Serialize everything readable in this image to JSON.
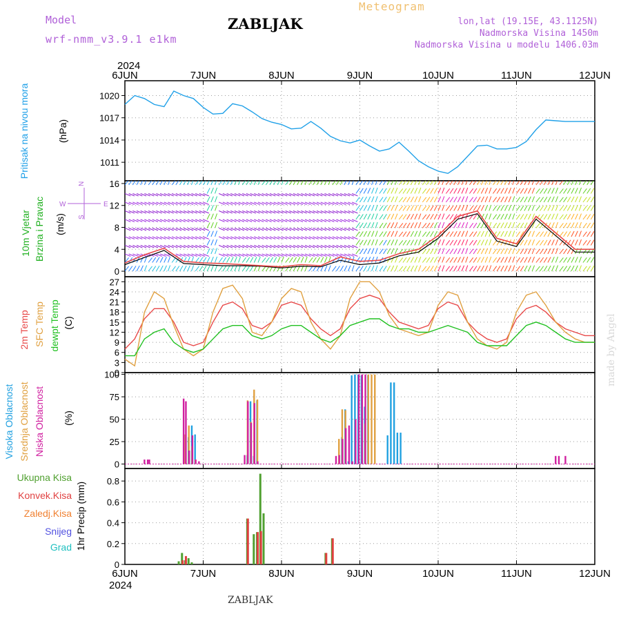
{
  "header": {
    "model_label": "Model",
    "model_name": "wrf-nmm_v3.9.1 e1km",
    "title": "ZABLJAK",
    "meteogram_label": "Meteogram",
    "lonlat": "lon,lat (19.15E, 43.1125N)",
    "altitude": "Nadmorska Visina 1450m",
    "model_altitude": "Nadmorska Visina u modelu 1406.03m"
  },
  "footer": {
    "station": "ZABLJAK",
    "credit": "made by Angel"
  },
  "colors": {
    "pressure": "#1fa0e8",
    "wind_label": "#20b020",
    "temp2m": "#e84848",
    "sfc": "#e0a040",
    "dewpt": "#20c020",
    "high_cloud": "#20a0e0",
    "mid_cloud": "#e0a040",
    "low_cloud": "#d020a0",
    "accent": "#b060d8",
    "total_precip": "#50a030",
    "conv_precip": "#e04040",
    "frozen": "#f08030",
    "snow": "#5050e0",
    "hail": "#20c0c0"
  },
  "chart_data": [
    {
      "type": "line",
      "id": "pressure",
      "ylabel_title": "Pritisak na nivou mora",
      "ylabel_unit": "(hPa)",
      "ylim": [
        1008.5,
        1022
      ],
      "yticks": [
        "1020",
        "1017",
        "1014",
        "1011"
      ],
      "ytick_values": [
        1020,
        1017,
        1014,
        1011
      ],
      "year": "2024",
      "xticks": [
        "6JUN",
        "7JUN",
        "8JUN",
        "9JUN",
        "10JUN",
        "11JUN",
        "12JUN"
      ],
      "xlim_hours": [
        0,
        144
      ],
      "grid": true,
      "series": [
        {
          "color_key": "pressure",
          "x": [
            0,
            3,
            6,
            9,
            12,
            15,
            18,
            21,
            24,
            27,
            30,
            33,
            36,
            39,
            42,
            45,
            48,
            51,
            54,
            57,
            60,
            63,
            66,
            69,
            72,
            75,
            78,
            81,
            84,
            87,
            90,
            93,
            96,
            99,
            102,
            105,
            108,
            111,
            114,
            117,
            120,
            123,
            126,
            129,
            132,
            135,
            138,
            141,
            144
          ],
          "y": [
            1018.8,
            1020.0,
            1019.6,
            1018.8,
            1018.5,
            1020.6,
            1020.0,
            1019.6,
            1018.4,
            1017.5,
            1017.6,
            1018.9,
            1018.6,
            1017.8,
            1016.9,
            1016.4,
            1016.1,
            1015.5,
            1015.6,
            1016.5,
            1015.6,
            1014.5,
            1013.9,
            1013.6,
            1014.0,
            1013.2,
            1012.5,
            1012.8,
            1013.7,
            1012.5,
            1011.2,
            1010.4,
            1009.8,
            1009.5,
            1010.4,
            1011.8,
            1013.2,
            1013.3,
            1012.8,
            1012.8,
            1013.0,
            1013.8,
            1015.4,
            1016.7,
            1016.6,
            1016.5,
            1016.5,
            1016.5,
            1016.5
          ]
        }
      ]
    },
    {
      "type": "line",
      "id": "wind",
      "ylabel_title": "10m Vjetar",
      "ylabel_title2": "Brzina i Pravac",
      "ylabel_unit": "(m/s)",
      "compass": {
        "n": "N",
        "s": "S",
        "w": "W",
        "e": "E"
      },
      "ylim": [
        -1,
        16.5
      ],
      "yticks": [
        "16",
        "12",
        "8",
        "4",
        "0"
      ],
      "ytick_values": [
        16,
        12,
        8,
        4,
        0
      ],
      "series": [
        {
          "name": "speed",
          "color": "#000000",
          "x": [
            0,
            6,
            12,
            18,
            24,
            30,
            36,
            42,
            48,
            54,
            60,
            66,
            72,
            78,
            84,
            90,
            96,
            102,
            108,
            114,
            120,
            126,
            132,
            138,
            144
          ],
          "y": [
            1.2,
            2.5,
            3.8,
            1.4,
            1.2,
            1.0,
            1.0,
            0.9,
            0.6,
            0.9,
            0.8,
            2.0,
            1.2,
            1.5,
            2.8,
            3.5,
            6.0,
            9.5,
            10.5,
            5.5,
            4.5,
            9.5,
            6.5,
            3.5,
            3.5
          ]
        },
        {
          "name": "gust",
          "color": "#e84848",
          "x": [
            0,
            6,
            12,
            18,
            24,
            30,
            36,
            42,
            48,
            54,
            60,
            66,
            72,
            78,
            84,
            90,
            96,
            102,
            108,
            114,
            120,
            126,
            132,
            138,
            144
          ],
          "y": [
            1.5,
            3.0,
            4.2,
            1.8,
            1.5,
            1.4,
            1.2,
            1.0,
            0.8,
            1.2,
            1.0,
            2.6,
            1.8,
            2.0,
            3.2,
            4.0,
            6.5,
            10.0,
            11.0,
            6.0,
            5.0,
            10.0,
            7.0,
            4.0,
            4.0
          ]
        }
      ]
    },
    {
      "type": "line",
      "id": "temperature",
      "ylabel_title": "2m Temp",
      "ylabel_title2": "SFC Temp",
      "ylabel_title3": "dewpt Temp",
      "ylabel_unit": "(C)",
      "ylim": [
        0,
        28.5
      ],
      "yticks": [
        "27",
        "24",
        "21",
        "18",
        "15",
        "12",
        "9",
        "6",
        "3",
        "0"
      ],
      "ytick_values": [
        27,
        24,
        21,
        18,
        15,
        12,
        9,
        6,
        3,
        0
      ],
      "series": [
        {
          "name": "2m Temp",
          "color_key": "temp2m",
          "x": [
            0,
            3,
            6,
            9,
            12,
            15,
            18,
            21,
            24,
            27,
            30,
            33,
            36,
            39,
            42,
            45,
            48,
            51,
            54,
            57,
            60,
            63,
            66,
            69,
            72,
            75,
            78,
            81,
            84,
            87,
            90,
            93,
            96,
            99,
            102,
            105,
            108,
            111,
            114,
            117,
            120,
            123,
            126,
            129,
            132,
            135,
            138,
            141,
            144
          ],
          "y": [
            7,
            10,
            16,
            19,
            19,
            15,
            9,
            8,
            9,
            15,
            20,
            21,
            19,
            14,
            13,
            15,
            20,
            21,
            20,
            16,
            13,
            11,
            13,
            19,
            22,
            23,
            22,
            18,
            15,
            14,
            13,
            14,
            19,
            21,
            20,
            15,
            12,
            10,
            9,
            10,
            16,
            19,
            20,
            18,
            15,
            13,
            12,
            11,
            11
          ]
        },
        {
          "name": "SFC Temp",
          "color_key": "sfc",
          "x": [
            0,
            3,
            6,
            9,
            12,
            15,
            18,
            21,
            24,
            27,
            30,
            33,
            36,
            39,
            42,
            45,
            48,
            51,
            54,
            57,
            60,
            63,
            66,
            69,
            72,
            75,
            78,
            81,
            84,
            87,
            90,
            93,
            96,
            99,
            102,
            105,
            108,
            111,
            114,
            117,
            120,
            123,
            126,
            129,
            132,
            135,
            138,
            141,
            144
          ],
          "y": [
            4,
            2,
            18,
            24,
            22,
            14,
            7,
            5,
            7,
            18,
            25,
            26,
            22,
            12,
            11,
            15,
            22,
            25,
            24,
            15,
            10,
            7,
            11,
            22,
            27,
            27,
            24,
            17,
            13,
            12,
            11,
            12,
            20,
            24,
            23,
            15,
            10,
            8,
            7,
            9,
            18,
            23,
            24,
            20,
            15,
            12,
            10,
            9,
            9
          ]
        },
        {
          "name": "dewpt Temp",
          "color_key": "dewpt",
          "x": [
            0,
            3,
            6,
            9,
            12,
            15,
            18,
            21,
            24,
            27,
            30,
            33,
            36,
            39,
            42,
            45,
            48,
            51,
            54,
            57,
            60,
            63,
            66,
            69,
            72,
            75,
            78,
            81,
            84,
            87,
            90,
            93,
            96,
            99,
            102,
            105,
            108,
            111,
            114,
            117,
            120,
            123,
            126,
            129,
            132,
            135,
            138,
            141,
            144
          ],
          "y": [
            5,
            5,
            10,
            12,
            13,
            9,
            7,
            6,
            7,
            10,
            13,
            14,
            14,
            11,
            10,
            11,
            13,
            14,
            14,
            12,
            10,
            9,
            11,
            14,
            15,
            16,
            16,
            14,
            13,
            13,
            12,
            12,
            13,
            14,
            13,
            12,
            9,
            8,
            8,
            8,
            11,
            14,
            15,
            14,
            12,
            10,
            9,
            9,
            9
          ]
        }
      ]
    },
    {
      "type": "bar",
      "id": "cloud",
      "ylabel_title": "Visoka Oblacnost",
      "ylabel_title2": "Srednja Oblacnost",
      "ylabel_title3": "Niska Oblacnost",
      "ylabel_unit": "(%)",
      "ylim": [
        -5,
        102
      ],
      "yticks": [
        "100",
        "75",
        "50",
        "25",
        "0"
      ],
      "ytick_values": [
        100,
        75,
        50,
        25,
        0
      ],
      "series": [
        {
          "name": "Visoka Oblacnost",
          "color_key": "high_cloud",
          "x": [
            19.5,
            20.5,
            21.5,
            37.5,
            38.5,
            39.5,
            40.5,
            66.5,
            67.5,
            68.5,
            69.5,
            70.5,
            71.5,
            72.5,
            73.5,
            74.5,
            80.5,
            81.5,
            82.5,
            83.5,
            84.5,
            85.5,
            86.5,
            87.5,
            88.5,
            89.5
          ],
          "y": [
            30,
            43,
            33,
            10,
            70,
            9,
            71,
            30,
            61,
            3,
            99,
            100,
            100,
            99,
            64,
            99,
            32,
            91,
            91,
            35,
            35,
            0,
            0,
            0,
            0,
            0
          ]
        },
        {
          "name": "Srednja Oblacnost",
          "color_key": "mid_cloud",
          "x": [
            18.5,
            19.6,
            20.6,
            21.6,
            37.6,
            38.6,
            39.6,
            40.6,
            65.6,
            66.6,
            67.6,
            73.6,
            74.6,
            75.6,
            76.6
          ],
          "y": [
            33,
            43,
            20,
            5,
            71,
            47,
            83,
            72,
            28,
            61,
            60,
            45,
            100,
            100,
            100
          ]
        },
        {
          "name": "Niska Oblacnost",
          "color_key": "low_cloud",
          "x": [
            6,
            7,
            7.5,
            18,
            18.7,
            19.7,
            20.7,
            21.7,
            22.7,
            36.7,
            37.7,
            38.7,
            39.7,
            40.7,
            64.7,
            65.7,
            66.7,
            67.7,
            68.7,
            69.7,
            70.7,
            71.7,
            72.7,
            73.7,
            132,
            133,
            135
          ],
          "y": [
            5,
            5,
            5,
            73,
            70,
            15,
            32,
            5,
            3,
            10,
            70,
            46,
            68,
            3,
            9,
            10,
            28,
            40,
            43,
            3,
            50,
            100,
            100,
            100,
            9,
            9,
            9
          ]
        }
      ]
    },
    {
      "type": "bar",
      "id": "precip",
      "ylabel_title": "1hr Precip (mm)",
      "legend": [
        "Ukupna Kisa",
        "Konvek.Kisa",
        "Zaledj.Kisa",
        "Snijeg",
        "Grad"
      ],
      "ylim": [
        0,
        0.92
      ],
      "yticks": [
        "0.8",
        "0.6",
        "0.4",
        "0.2",
        "0"
      ],
      "ytick_values": [
        0.8,
        0.6,
        0.4,
        0.2,
        0
      ],
      "xticks_bottom": [
        "6JUN",
        "7JUN",
        "8JUN",
        "9JUN",
        "10JUN",
        "11JUN",
        "12JUN"
      ],
      "year_bottom": "2024",
      "series": [
        {
          "name": "Ukupna Kisa",
          "color_key": "total_precip",
          "x": [
            16.5,
            17.5,
            18.5,
            19.5,
            20.5,
            37.5,
            38.5,
            39.5,
            40.5,
            41.5,
            42.5,
            43.5,
            61.5,
            62.5,
            63.5
          ],
          "y": [
            0.03,
            0.11,
            0.04,
            0.06,
            0.02,
            0.44,
            0.0,
            0.29,
            0.31,
            0.87,
            0.49,
            0.0,
            0.11,
            0.0,
            0.25
          ]
        },
        {
          "name": "Konvek.Kisa",
          "color_key": "conv_precip",
          "x": [
            17.7,
            18.7,
            37.7,
            40.7,
            41.7,
            61.7,
            63.7
          ],
          "y": [
            0.04,
            0.08,
            0.44,
            0.31,
            0.32,
            0.11,
            0.25
          ]
        }
      ]
    }
  ]
}
